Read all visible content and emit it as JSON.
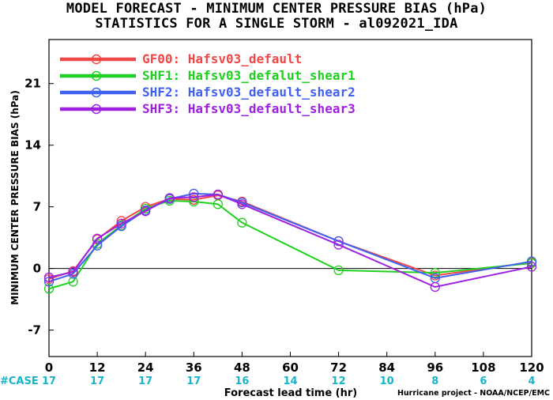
{
  "title_line1": "MODEL FORECAST - MINIMUM CENTER PRESSURE BIAS (hPa)",
  "title_line2": "STATISTICS FOR A SINGLE STORM - al092021_IDA",
  "credit": "Hurricane project - NOAA/NCEP/EMC",
  "case_label": "#CASE",
  "chart_data": {
    "type": "line",
    "xlabel": "Forecast lead time (hr)",
    "ylabel": "MINIMUM CENTER PRESSURE BIAS (hPa)",
    "xlim": [
      0,
      120
    ],
    "ylim": [
      -10,
      26
    ],
    "xticks": [
      0,
      12,
      24,
      36,
      48,
      60,
      72,
      84,
      96,
      108,
      120
    ],
    "yticks": [
      -7,
      0,
      7,
      14,
      21
    ],
    "case_counts": [
      17,
      17,
      17,
      17,
      16,
      14,
      12,
      10,
      8,
      6,
      4
    ],
    "zero_line": true,
    "legend_position": "top-left",
    "series": [
      {
        "name": "GF00: Hafsv03_default",
        "color": "#f04848",
        "x": [
          0,
          6,
          12,
          18,
          24,
          30,
          36,
          42,
          48,
          72,
          96,
          120
        ],
        "y": [
          -1.2,
          -0.3,
          3.3,
          5.4,
          7.0,
          7.9,
          7.8,
          8.3,
          7.6,
          3.1,
          -0.8,
          0.7
        ]
      },
      {
        "name": "SHF1: Hafsv03_defalut_shear1",
        "color": "#20d020",
        "x": [
          0,
          6,
          12,
          18,
          24,
          30,
          36,
          42,
          48,
          72,
          96,
          120
        ],
        "y": [
          -2.3,
          -1.5,
          2.8,
          4.9,
          6.8,
          7.7,
          7.6,
          7.3,
          5.2,
          -0.2,
          -0.5,
          0.6
        ]
      },
      {
        "name": "SHF2: Hafsv03_default_shear2",
        "color": "#4060f0",
        "x": [
          0,
          6,
          12,
          18,
          24,
          30,
          36,
          42,
          48,
          72,
          96,
          120
        ],
        "y": [
          -1.5,
          -0.6,
          2.6,
          4.8,
          6.6,
          7.9,
          8.5,
          8.4,
          7.5,
          3.1,
          -1.1,
          0.8
        ]
      },
      {
        "name": "SHF3: Hafsv03_default_shear3",
        "color": "#a020e0",
        "x": [
          0,
          6,
          12,
          18,
          24,
          30,
          36,
          42,
          48,
          72,
          96,
          120
        ],
        "y": [
          -1.0,
          -0.4,
          3.4,
          5.1,
          6.5,
          8.0,
          8.1,
          8.4,
          7.3,
          2.7,
          -2.1,
          0.2
        ]
      }
    ]
  }
}
